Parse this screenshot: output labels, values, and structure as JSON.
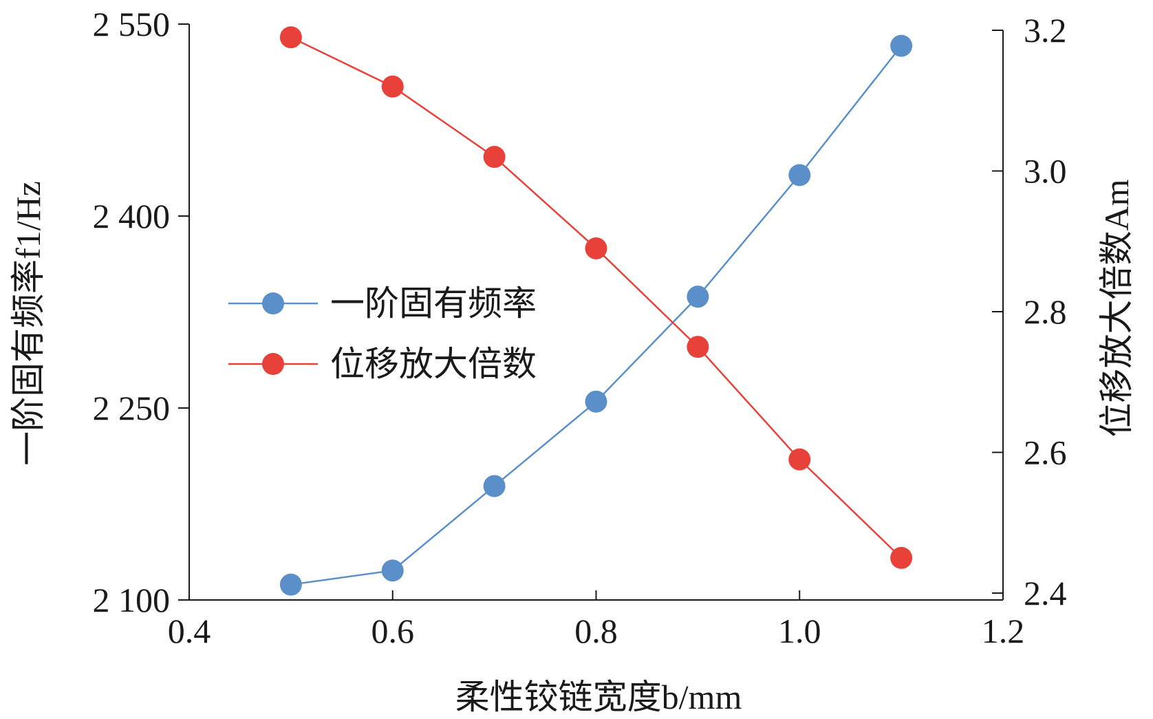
{
  "chart_data": {
    "type": "line",
    "x": [
      0.5,
      0.6,
      0.7,
      0.8,
      0.9,
      1.0,
      1.1
    ],
    "xlim": [
      0.4,
      1.2
    ],
    "xticks": [
      "0.4",
      "0.6",
      "0.8",
      "1.0",
      "1.2"
    ],
    "xlabel": "柔性铰链宽度b/mm",
    "ylabel_left": "一阶固有频率f1/Hz",
    "ylim_left": [
      2100,
      2550
    ],
    "yticks_left": [
      "2 100",
      "2 250",
      "2 400",
      "2 550"
    ],
    "ylabel_right": "位移放大倍数Am",
    "ylim_right": [
      2.4,
      3.2
    ],
    "yticks_right": [
      "2.4",
      "2.6",
      "2.8",
      "3.0",
      "3.2"
    ],
    "grid": false,
    "legend_position": "center-left",
    "series": [
      {
        "name": "一阶固有频率",
        "axis": "left",
        "color": "#5b8fc9",
        "values": [
          2112,
          2123,
          2189,
          2255,
          2337,
          2432,
          2533
        ]
      },
      {
        "name": "位移放大倍数",
        "axis": "right",
        "color": "#e8413a",
        "values": [
          3.19,
          3.12,
          3.02,
          2.89,
          2.75,
          2.59,
          2.45
        ]
      }
    ]
  }
}
